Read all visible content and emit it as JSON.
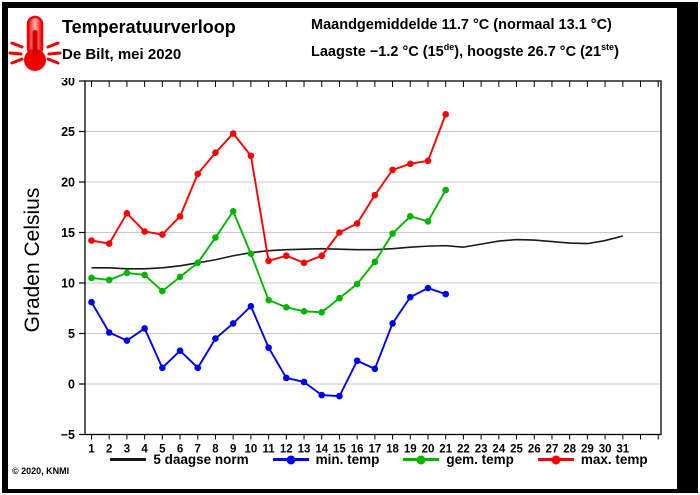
{
  "header": {
    "title": "Temperatuurverloop",
    "subtitle": "De Bilt, mei 2020",
    "stats_line1": "Maandgemiddelde 11.7 °C (normaal 13.1 °C)",
    "stats_line2_parts": {
      "a": "Laagste −1.2 °C (15",
      "sup1": "de",
      "b": "), hoogste 26.7 °C (21",
      "sup2": "ste",
      "c": ")"
    },
    "logo_icon": "thermometer-icon"
  },
  "footer": {
    "copyright": "© 2020, KNMI"
  },
  "chart_data": {
    "type": "line",
    "title": "Temperatuurverloop De Bilt, mei 2020",
    "ylabel": "Graden Celsius",
    "ylim": [
      -5,
      30
    ],
    "ytick_step": 5,
    "grid": "horizontal gridlines every 5 °C",
    "legend_position": "bottom",
    "x_days": [
      1,
      2,
      3,
      4,
      5,
      6,
      7,
      8,
      9,
      10,
      11,
      12,
      13,
      14,
      15,
      16,
      17,
      18,
      19,
      20,
      21,
      22,
      23,
      24,
      25,
      26,
      27,
      28,
      29,
      30,
      31
    ],
    "series": [
      {
        "name": "5 daagse norm",
        "color": "#1a1a1a",
        "marker": false,
        "values": [
          11.5,
          11.5,
          11.4,
          11.4,
          11.5,
          11.7,
          12.0,
          12.3,
          12.7,
          13.0,
          13.2,
          13.3,
          13.35,
          13.4,
          13.35,
          13.3,
          13.3,
          13.4,
          13.55,
          13.65,
          13.7,
          13.55,
          13.85,
          14.15,
          14.3,
          14.25,
          14.1,
          13.95,
          13.9,
          14.2,
          14.65
        ]
      },
      {
        "name": "min. temp",
        "color": "#0000f0",
        "marker": true,
        "values": [
          8.1,
          5.1,
          4.3,
          5.5,
          1.6,
          3.3,
          1.6,
          4.5,
          6.0,
          7.7,
          3.6,
          0.6,
          0.2,
          -1.1,
          -1.2,
          2.3,
          1.5,
          6.0,
          8.6,
          9.5,
          8.9
        ]
      },
      {
        "name": "gem. temp",
        "color": "#00b400",
        "marker": true,
        "values": [
          10.5,
          10.3,
          11.0,
          10.8,
          9.2,
          10.6,
          12.0,
          14.5,
          17.1,
          12.9,
          8.3,
          7.6,
          7.2,
          7.1,
          8.5,
          9.9,
          12.1,
          14.9,
          16.6,
          16.1,
          19.2
        ]
      },
      {
        "name": "max. temp",
        "color": "#ff0000",
        "marker": true,
        "values": [
          14.2,
          13.9,
          16.9,
          15.1,
          14.8,
          16.6,
          20.8,
          22.9,
          24.8,
          22.6,
          12.2,
          12.7,
          12.0,
          12.7,
          15.0,
          15.9,
          18.7,
          21.2,
          21.8,
          22.1,
          26.7
        ]
      }
    ]
  }
}
